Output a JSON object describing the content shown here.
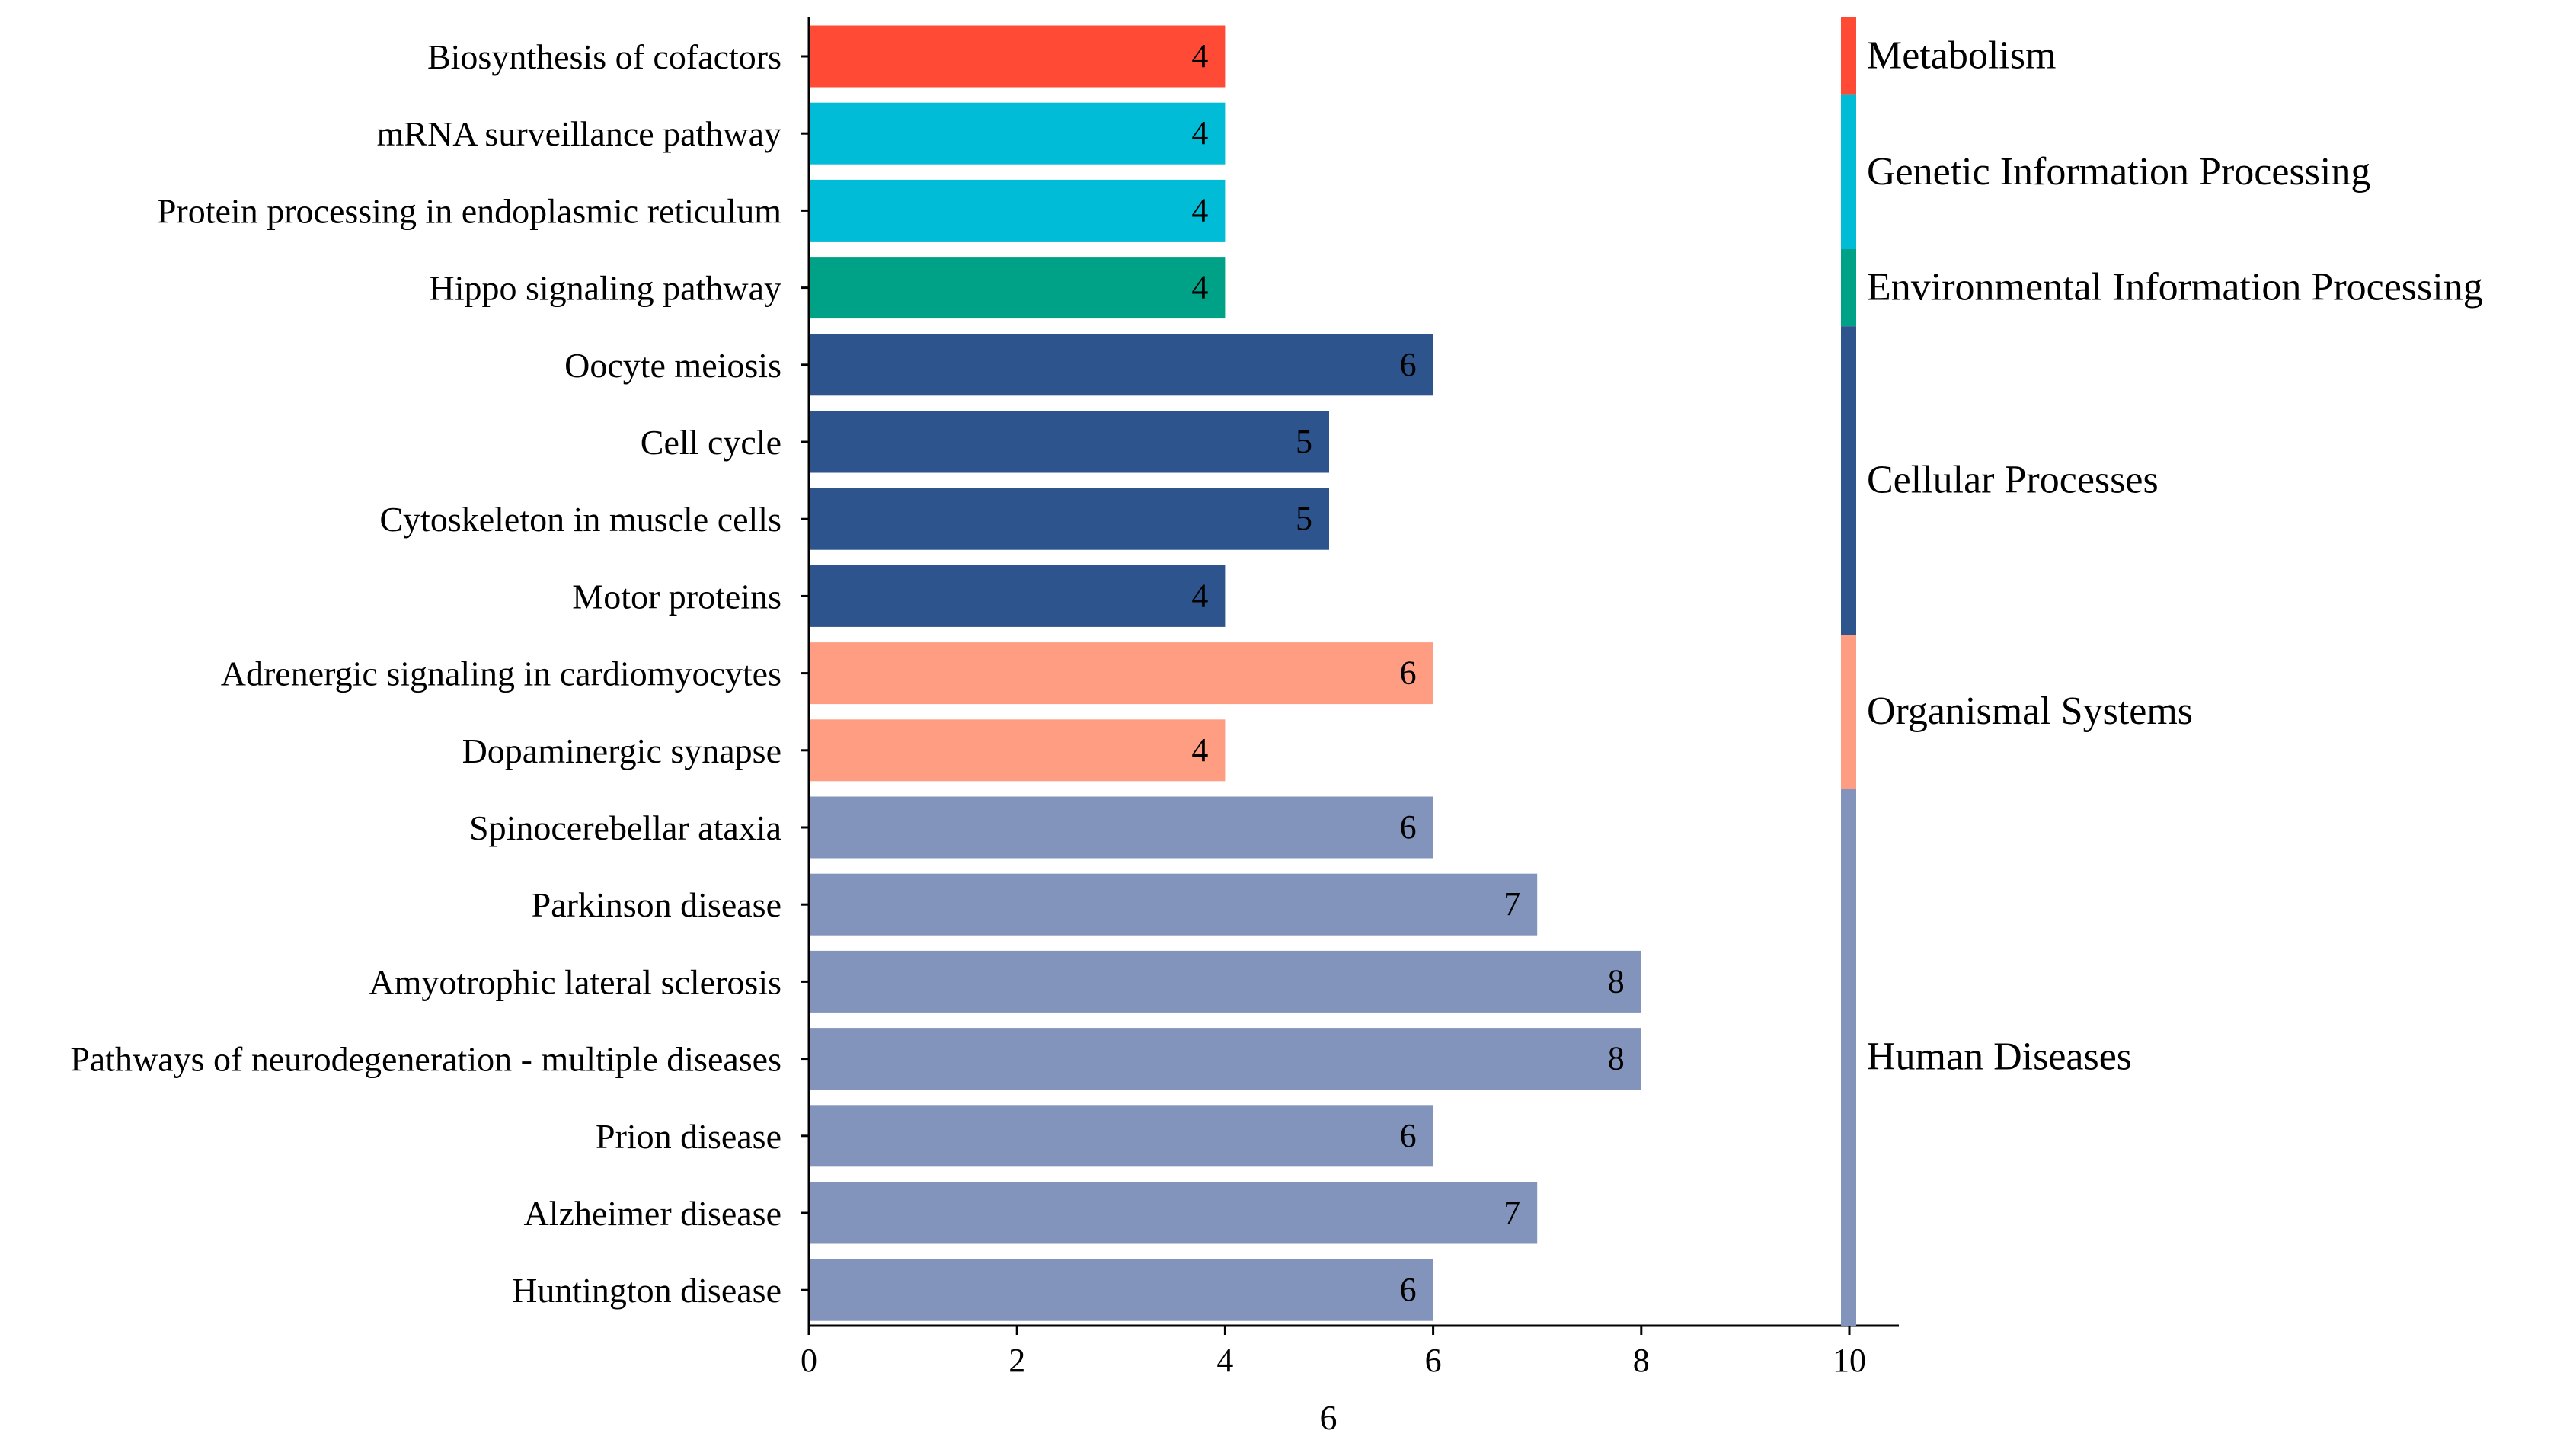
{
  "chart_data": {
    "type": "bar",
    "orientation": "horizontal",
    "title": "",
    "xlabel": "6",
    "ylabel": "",
    "xlim": [
      0,
      10
    ],
    "xticks": [
      0,
      2,
      4,
      6,
      8,
      10
    ],
    "grid": false,
    "categories": [
      "Biosynthesis of cofactors",
      "mRNA surveillance pathway",
      "Protein processing in endoplasmic reticulum",
      "Hippo signaling pathway",
      "Oocyte meiosis",
      "Cell cycle",
      "Cytoskeleton in muscle cells",
      "Motor proteins",
      "Adrenergic signaling in cardiomyocytes",
      "Dopaminergic synapse",
      "Spinocerebellar ataxia",
      "Parkinson disease",
      "Amyotrophic lateral sclerosis",
      "Pathways of neurodegeneration - multiple diseases",
      "Prion disease",
      "Alzheimer disease",
      "Huntington disease"
    ],
    "values": [
      4,
      4,
      4,
      4,
      6,
      5,
      5,
      4,
      6,
      4,
      6,
      7,
      8,
      8,
      6,
      7,
      6
    ],
    "bar_groups": [
      "Metabolism",
      "Genetic Information Processing",
      "Genetic Information Processing",
      "Environmental Information Processing",
      "Cellular Processes",
      "Cellular Processes",
      "Cellular Processes",
      "Cellular Processes",
      "Organismal Systems",
      "Organismal Systems",
      "Human Diseases",
      "Human Diseases",
      "Human Diseases",
      "Human Diseases",
      "Human Diseases",
      "Human Diseases",
      "Human Diseases"
    ],
    "groups": [
      {
        "name": "Metabolism",
        "color": "#FF4B36",
        "count": 1
      },
      {
        "name": "Genetic Information Processing",
        "color": "#00BCD6",
        "count": 2
      },
      {
        "name": "Environmental Information Processing",
        "color": "#00A287",
        "count": 1
      },
      {
        "name": "Cellular Processes",
        "color": "#2D548C",
        "count": 4
      },
      {
        "name": "Organismal Systems",
        "color": "#FF9D82",
        "count": 2
      },
      {
        "name": "Human Diseases",
        "color": "#8294BB",
        "count": 7
      }
    ],
    "legend_position": "right",
    "data_labels": true
  }
}
